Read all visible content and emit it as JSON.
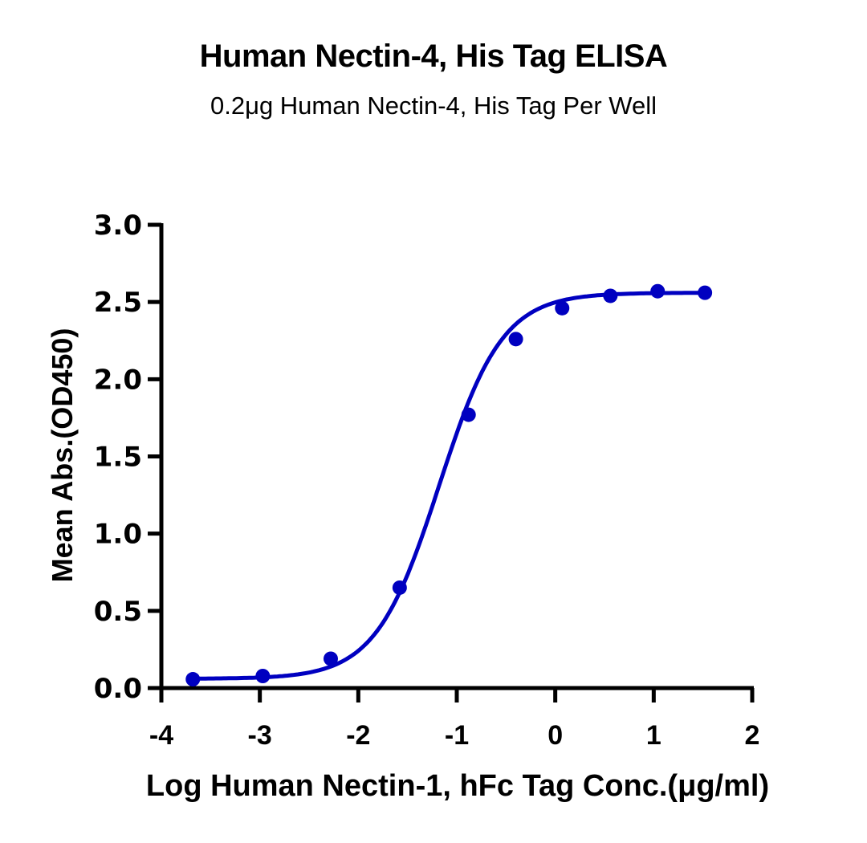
{
  "chart_data": {
    "type": "line",
    "title": "Human Nectin-4, His Tag ELISA",
    "subtitle": "0.2μg Human Nectin-4, His Tag Per Well",
    "xlabel": "Log Human Nectin-1, hFc Tag Conc.(μg/ml)",
    "ylabel": "Mean Abs.(OD450)",
    "xlim": [
      -4,
      2
    ],
    "ylim": [
      0,
      3.0
    ],
    "x_ticks": [
      "-4",
      "-3",
      "-2",
      "-1",
      "0",
      "1",
      "2"
    ],
    "y_ticks": [
      "0.0",
      "0.5",
      "1.0",
      "1.5",
      "2.0",
      "2.5",
      "3.0"
    ],
    "grid": false,
    "legend": null,
    "series": [
      {
        "name": "Human Nectin-1, hFc Tag",
        "color": "#0000c0",
        "marker": "circle",
        "fit": "4PL sigmoid",
        "x": [
          -3.68,
          -2.97,
          -2.28,
          -1.58,
          -0.88,
          -0.4,
          0.07,
          0.56,
          1.04,
          1.52
        ],
        "y": [
          0.057,
          0.078,
          0.19,
          0.65,
          1.77,
          2.26,
          2.46,
          2.54,
          2.57,
          2.56
        ]
      }
    ]
  }
}
